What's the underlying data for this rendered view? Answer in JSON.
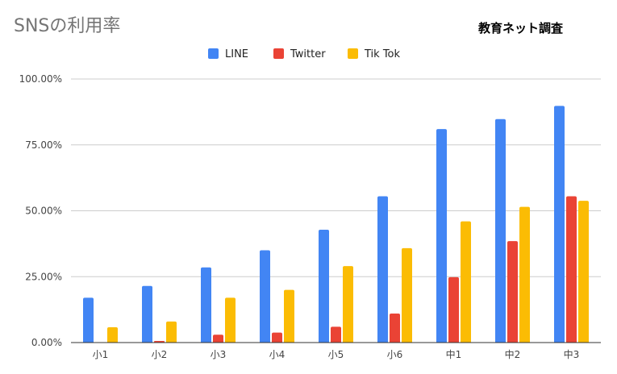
{
  "header": {
    "title": "SNSの利用率",
    "source": "教育ネット調査"
  },
  "chart_data": {
    "type": "bar",
    "title": "SNSの利用率",
    "xlabel": "",
    "ylabel": "",
    "categories": [
      "小1",
      "小2",
      "小3",
      "小4",
      "小5",
      "小6",
      "中1",
      "中2",
      "中3"
    ],
    "series": [
      {
        "name": "LINE",
        "color": "#4285F4",
        "values": [
          17.0,
          21.5,
          28.5,
          35.0,
          42.8,
          55.5,
          81.0,
          84.8,
          89.8
        ]
      },
      {
        "name": "Twitter",
        "color": "#EA4335",
        "values": [
          0.0,
          0.6,
          3.0,
          3.8,
          6.0,
          11.0,
          24.8,
          38.5,
          55.5
        ]
      },
      {
        "name": "Tik Tok",
        "color": "#FBBC04",
        "values": [
          5.8,
          8.0,
          17.0,
          20.0,
          29.0,
          35.8,
          46.0,
          51.5,
          53.8
        ]
      }
    ],
    "ylim": [
      0,
      100
    ],
    "yticks": [
      0,
      25,
      50,
      75,
      100
    ],
    "ytick_labels": [
      "0.00%",
      "25.00%",
      "50.00%",
      "75.00%",
      "100.00%"
    ],
    "grid": true,
    "legend_position": "top"
  }
}
